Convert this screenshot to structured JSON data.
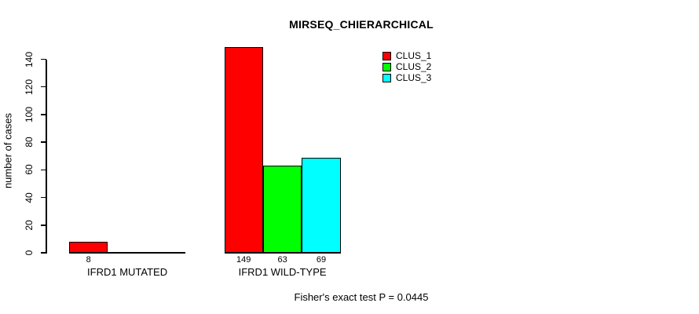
{
  "chart_data": {
    "type": "bar",
    "title": "MIRSEQ_CHIERARCHICAL",
    "ylabel": "number of cases",
    "xlabel": "",
    "categories": [
      "IFRD1 MUTATED",
      "IFRD1 WILD-TYPE"
    ],
    "series": [
      {
        "name": "CLUS_1",
        "color": "#ff0000",
        "values": [
          8,
          149
        ]
      },
      {
        "name": "CLUS_2",
        "color": "#00ff00",
        "values": [
          0,
          63
        ]
      },
      {
        "name": "CLUS_3",
        "color": "#00ffff",
        "values": [
          0,
          69
        ]
      }
    ],
    "bar_value_labels": [
      [
        "8",
        "",
        ""
      ],
      [
        "149",
        "63",
        "69"
      ]
    ],
    "ylim": [
      0,
      140
    ],
    "yticks": [
      0,
      20,
      40,
      60,
      80,
      100,
      120,
      140
    ],
    "grid": false,
    "legend_position": "top-right",
    "annotation": "Fisher's exact test P = 0.0445"
  },
  "colors": {
    "background": "#ffffff",
    "axis": "#000000",
    "bar_border": "#000000",
    "clus_1": "#ff0000",
    "clus_2": "#00ff00",
    "clus_3": "#00ffff"
  }
}
